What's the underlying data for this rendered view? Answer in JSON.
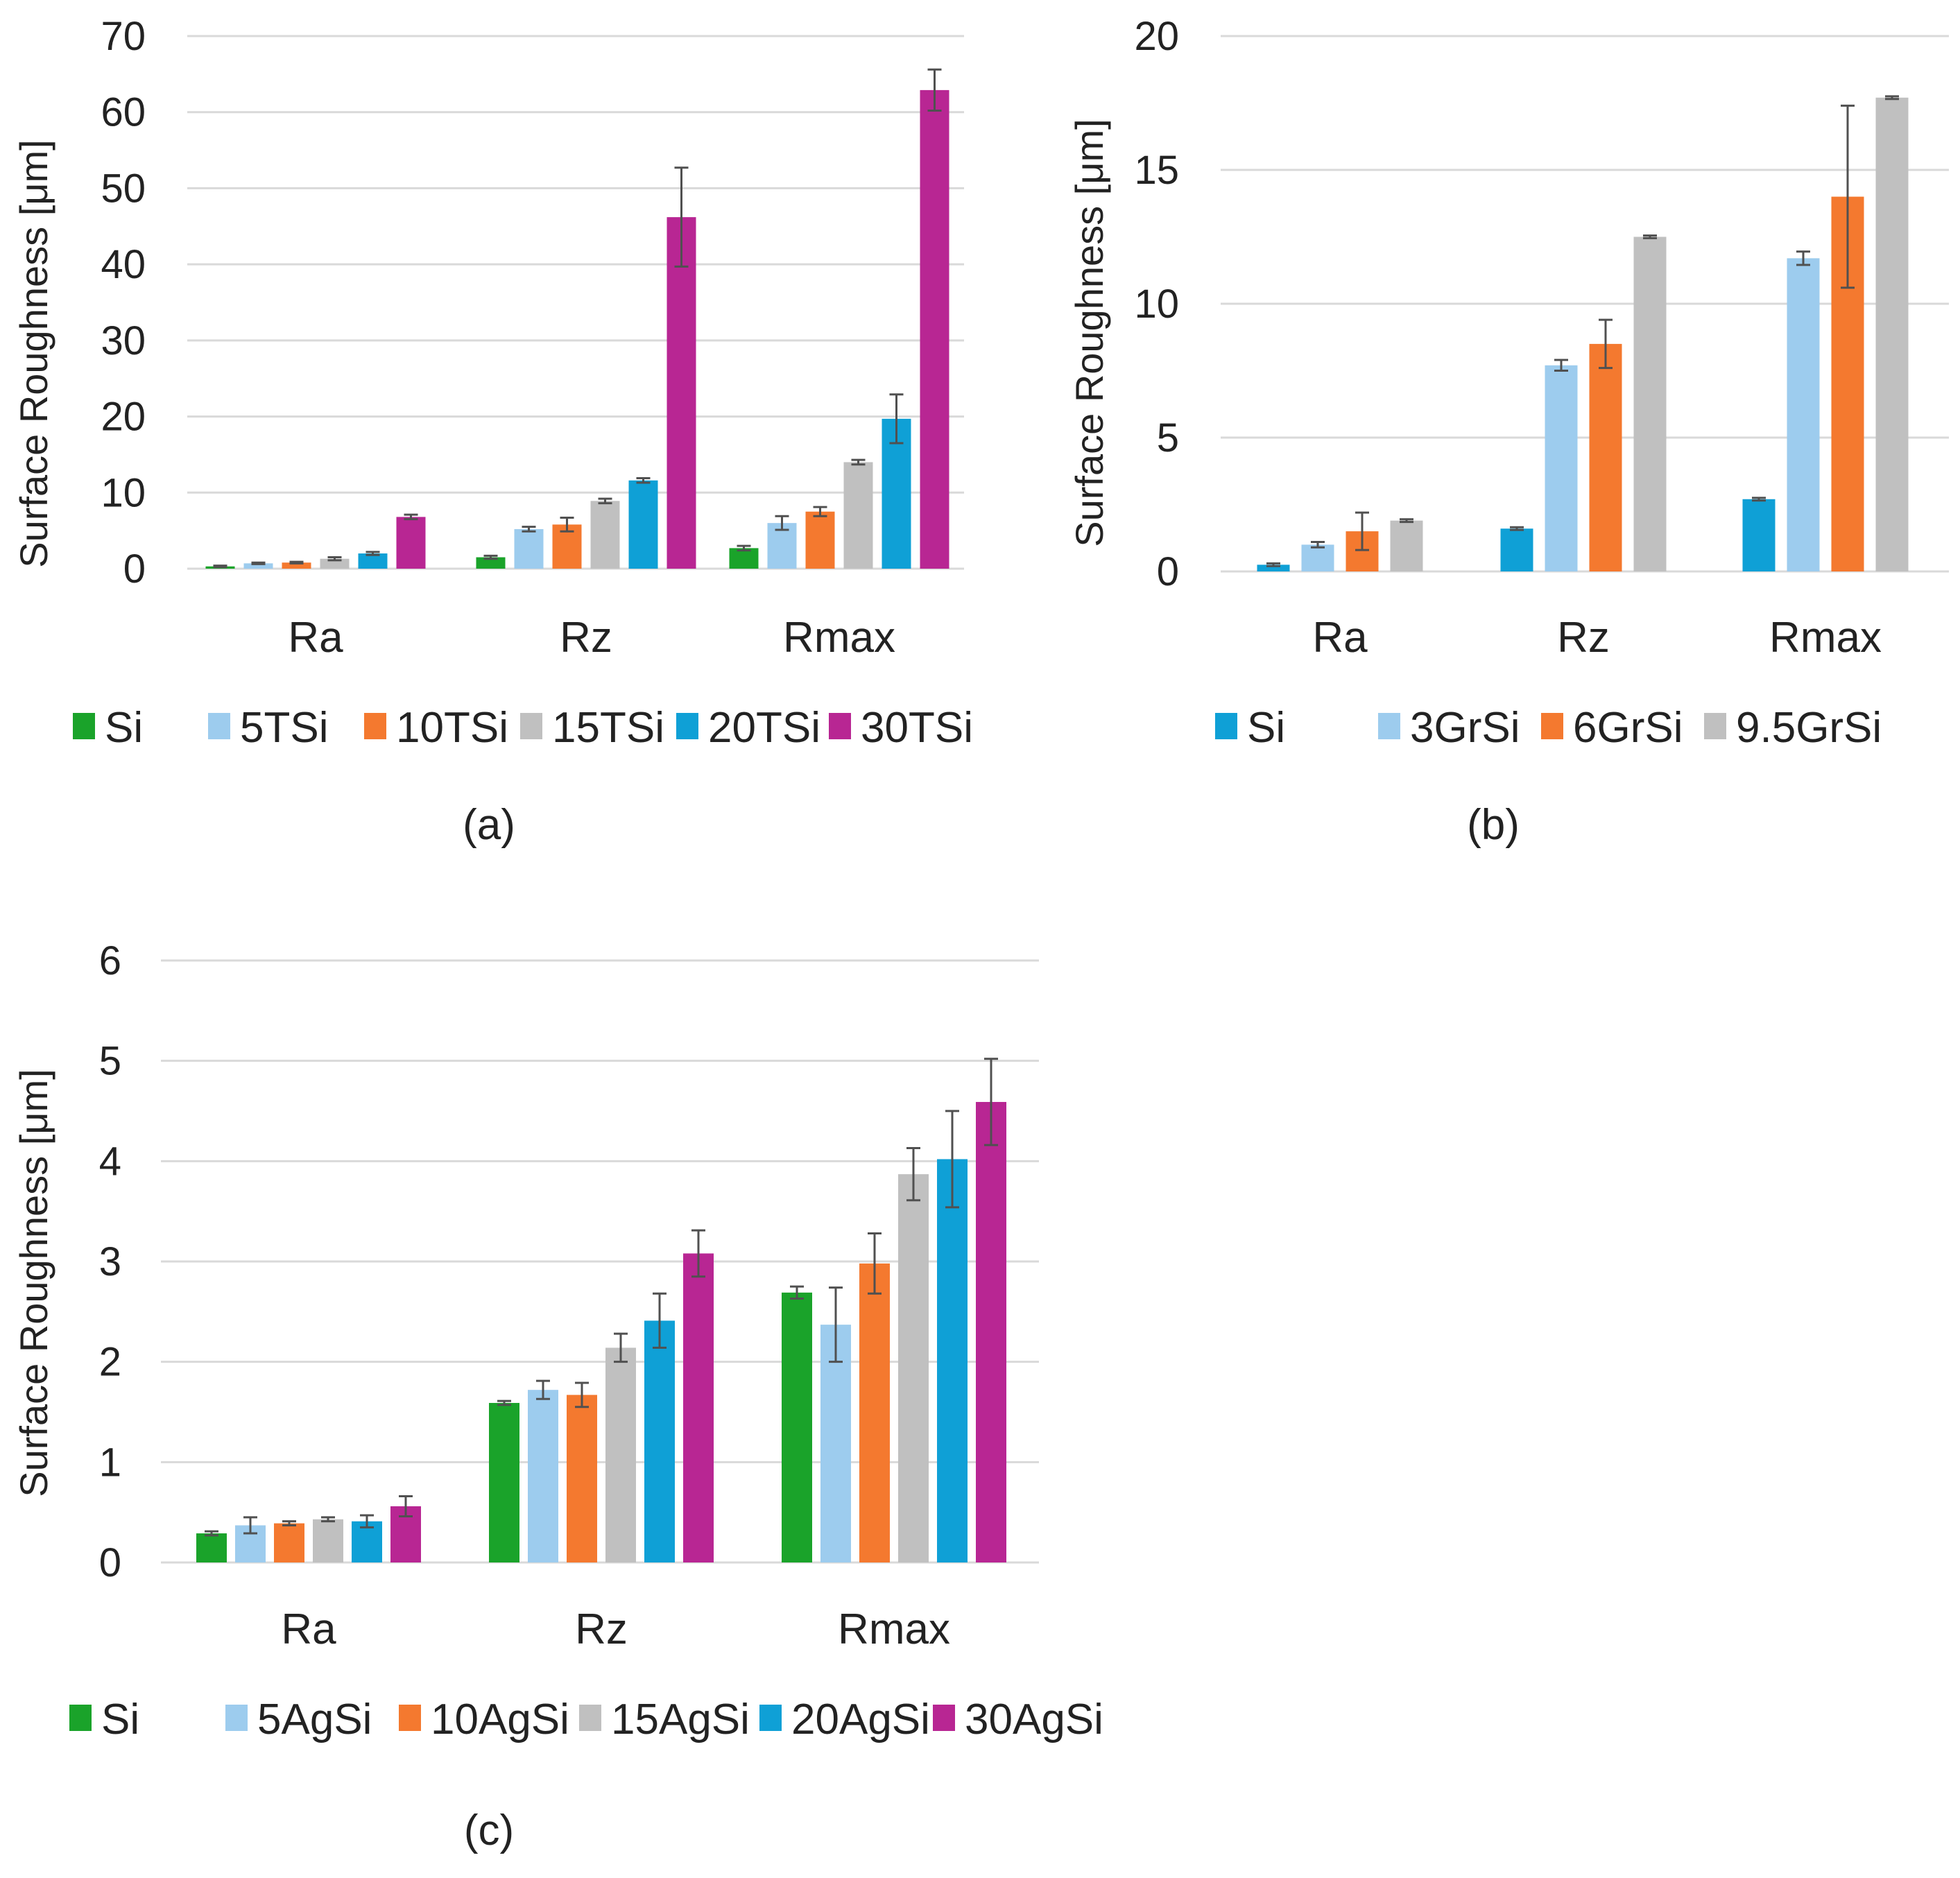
{
  "chart_data": [
    {
      "type": "bar",
      "panel_label": "(a)",
      "categories": [
        "Ra",
        "Rz",
        "Rmax"
      ],
      "ylabel": "Surface Roughness [μm]",
      "ylim": [
        0,
        70
      ],
      "yticks": [
        "0",
        "10",
        "20",
        "30",
        "40",
        "50",
        "60",
        "70"
      ],
      "yticks_num": [
        0,
        10,
        20,
        30,
        40,
        50,
        60,
        70
      ],
      "grid": true,
      "legend": "bottom",
      "series": [
        {
          "name": "Si",
          "color": "#1aa32a",
          "values": [
            0.3,
            1.5,
            2.7
          ],
          "errors": [
            0.1,
            0.2,
            0.3
          ]
        },
        {
          "name": "5TSi",
          "color": "#9dccee",
          "values": [
            0.7,
            5.2,
            6.0
          ],
          "errors": [
            0.1,
            0.3,
            0.9
          ]
        },
        {
          "name": "10TSi",
          "color": "#f4792f",
          "values": [
            0.8,
            5.8,
            7.5
          ],
          "errors": [
            0.1,
            0.9,
            0.6
          ]
        },
        {
          "name": "15TSi",
          "color": "#c0c0c0",
          "values": [
            1.3,
            8.9,
            14.0
          ],
          "errors": [
            0.2,
            0.3,
            0.3
          ]
        },
        {
          "name": "20TSi",
          "color": "#0fa0d6",
          "values": [
            2.0,
            11.6,
            19.7
          ],
          "errors": [
            0.2,
            0.3,
            3.2
          ]
        },
        {
          "name": "30TSi",
          "color": "#b82693",
          "values": [
            6.8,
            46.2,
            62.9
          ],
          "errors": [
            0.3,
            6.5,
            2.7
          ]
        }
      ]
    },
    {
      "type": "bar",
      "panel_label": "(b)",
      "categories": [
        "Ra",
        "Rz",
        "Rmax"
      ],
      "ylabel": "Surface Roughness [μm]",
      "ylim": [
        0,
        20
      ],
      "yticks": [
        "0",
        "5",
        "10",
        "15",
        "20"
      ],
      "yticks_num": [
        0,
        5,
        10,
        15,
        20
      ],
      "grid": true,
      "legend": "bottom",
      "series": [
        {
          "name": "Si",
          "color": "#0fa0d6",
          "values": [
            0.25,
            1.6,
            2.7
          ],
          "errors": [
            0.05,
            0.05,
            0.05
          ]
        },
        {
          "name": "3GrSi",
          "color": "#9dccee",
          "values": [
            1.0,
            7.7,
            11.7
          ],
          "errors": [
            0.1,
            0.2,
            0.25
          ]
        },
        {
          "name": "6GrSi",
          "color": "#f4792f",
          "values": [
            1.5,
            8.5,
            14.0
          ],
          "errors": [
            0.7,
            0.9,
            3.4
          ]
        },
        {
          "name": "9.5GrSi",
          "color": "#c0c0c0",
          "values": [
            1.9,
            12.5,
            17.7
          ],
          "errors": [
            0.05,
            0.05,
            0.05
          ]
        }
      ]
    },
    {
      "type": "bar",
      "panel_label": "(c)",
      "categories": [
        "Ra",
        "Rz",
        "Rmax"
      ],
      "ylabel": "Surface Roughness [μm]",
      "ylim": [
        0,
        6
      ],
      "yticks": [
        "0",
        "1",
        "2",
        "3",
        "4",
        "5",
        "6"
      ],
      "yticks_num": [
        0,
        1,
        2,
        3,
        4,
        5,
        6
      ],
      "grid": true,
      "legend": "bottom",
      "series": [
        {
          "name": "Si",
          "color": "#1aa32a",
          "values": [
            0.29,
            1.59,
            2.69
          ],
          "errors": [
            0.02,
            0.02,
            0.06
          ]
        },
        {
          "name": "5AgSi",
          "color": "#9dccee",
          "values": [
            0.37,
            1.72,
            2.37
          ],
          "errors": [
            0.08,
            0.09,
            0.37
          ]
        },
        {
          "name": "10AgSi",
          "color": "#f4792f",
          "values": [
            0.39,
            1.67,
            2.98
          ],
          "errors": [
            0.02,
            0.12,
            0.3
          ]
        },
        {
          "name": "15AgSi",
          "color": "#c0c0c0",
          "values": [
            0.43,
            2.14,
            3.87
          ],
          "errors": [
            0.02,
            0.14,
            0.26
          ]
        },
        {
          "name": "20AgSi",
          "color": "#0fa0d6",
          "values": [
            0.41,
            2.41,
            4.02
          ],
          "errors": [
            0.06,
            0.27,
            0.48
          ]
        },
        {
          "name": "30AgSi",
          "color": "#b82693",
          "values": [
            0.56,
            3.08,
            4.59
          ],
          "errors": [
            0.1,
            0.23,
            0.43
          ]
        }
      ]
    }
  ]
}
